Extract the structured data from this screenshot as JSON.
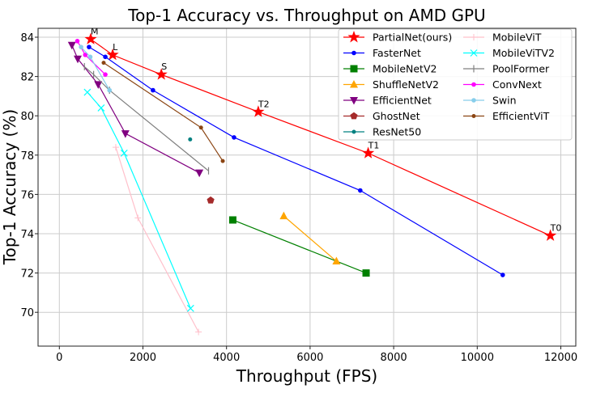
{
  "chart_data": {
    "type": "line",
    "title": "Top-1 Accuracy vs. Throughput on AMD GPU",
    "xlabel": "Throughput (FPS)",
    "ylabel": "Top-1 Accuracy (%)",
    "xlim": [
      -500,
      12300
    ],
    "ylim": [
      68.4,
      84.4
    ],
    "xticks": [
      0,
      2000,
      4000,
      6000,
      8000,
      10000,
      12000
    ],
    "yticks": [
      70,
      72,
      74,
      76,
      78,
      80,
      82,
      84
    ],
    "grid": true,
    "legend_placement": "top-right",
    "series": [
      {
        "name": "PartialNet(ours)",
        "color": "#ff0000",
        "marker": "star",
        "x": [
          750,
          1275,
          2440,
          4760,
          7390,
          11750
        ],
        "y": [
          83.9,
          83.1,
          82.1,
          80.2,
          78.1,
          73.9
        ],
        "labels": [
          "M",
          "L",
          "S",
          "T2",
          "T1",
          "T0"
        ]
      },
      {
        "name": "FasterNet",
        "color": "#0000ff",
        "marker": "dot",
        "x": [
          710,
          1100,
          2240,
          4180,
          7200,
          10610
        ],
        "y": [
          83.5,
          83.0,
          81.3,
          78.9,
          76.2,
          71.9
        ]
      },
      {
        "name": "MobileNetV2",
        "color": "#008000",
        "marker": "square",
        "x": [
          4150,
          7340
        ],
        "y": [
          74.7,
          72.0
        ]
      },
      {
        "name": "ShuffleNetV2",
        "color": "#ffa500",
        "marker": "triangle-up",
        "x": [
          5370,
          6630
        ],
        "y": [
          74.9,
          72.6
        ]
      },
      {
        "name": "EfficientNet",
        "color": "#800080",
        "marker": "triangle-down",
        "x": [
          300,
          440,
          930,
          1580,
          3350
        ],
        "y": [
          83.6,
          82.9,
          81.6,
          79.1,
          77.1
        ]
      },
      {
        "name": "GhostNet",
        "color": "#a52a2a",
        "marker": "pentagon",
        "x": [
          3620
        ],
        "y": [
          75.7
        ]
      },
      {
        "name": "ResNet50",
        "color": "#008080",
        "marker": "small-dot",
        "x": [
          3130
        ],
        "y": [
          78.8
        ]
      },
      {
        "name": "MobileViT",
        "color": "#ffc0cb",
        "marker": "plus",
        "x": [
          1350,
          1880,
          3330
        ],
        "y": [
          78.4,
          74.8,
          69.0
        ]
      },
      {
        "name": "MobileViTV2",
        "color": "#00ffff",
        "marker": "x",
        "x": [
          670,
          1000,
          1550,
          3140
        ],
        "y": [
          81.2,
          80.4,
          78.1,
          70.2
        ]
      },
      {
        "name": "PoolFormer",
        "color": "#808080",
        "marker": "vline",
        "x": [
          600,
          820,
          1200,
          3570
        ],
        "y": [
          82.5,
          82.1,
          81.3,
          77.2
        ]
      },
      {
        "name": "ConvNext",
        "color": "#ff00ff",
        "marker": "dot",
        "x": [
          430,
          620,
          1100
        ],
        "y": [
          83.8,
          83.1,
          82.1
        ]
      },
      {
        "name": "Swin",
        "color": "#87ceeb",
        "marker": "dot",
        "x": [
          520,
          740,
          1200
        ],
        "y": [
          83.5,
          83.0,
          81.3
        ]
      },
      {
        "name": "EfficientViT",
        "color": "#8b4513",
        "marker": "small-dot",
        "x": [
          1060,
          3390,
          3910
        ],
        "y": [
          82.7,
          79.4,
          77.7
        ]
      }
    ]
  }
}
